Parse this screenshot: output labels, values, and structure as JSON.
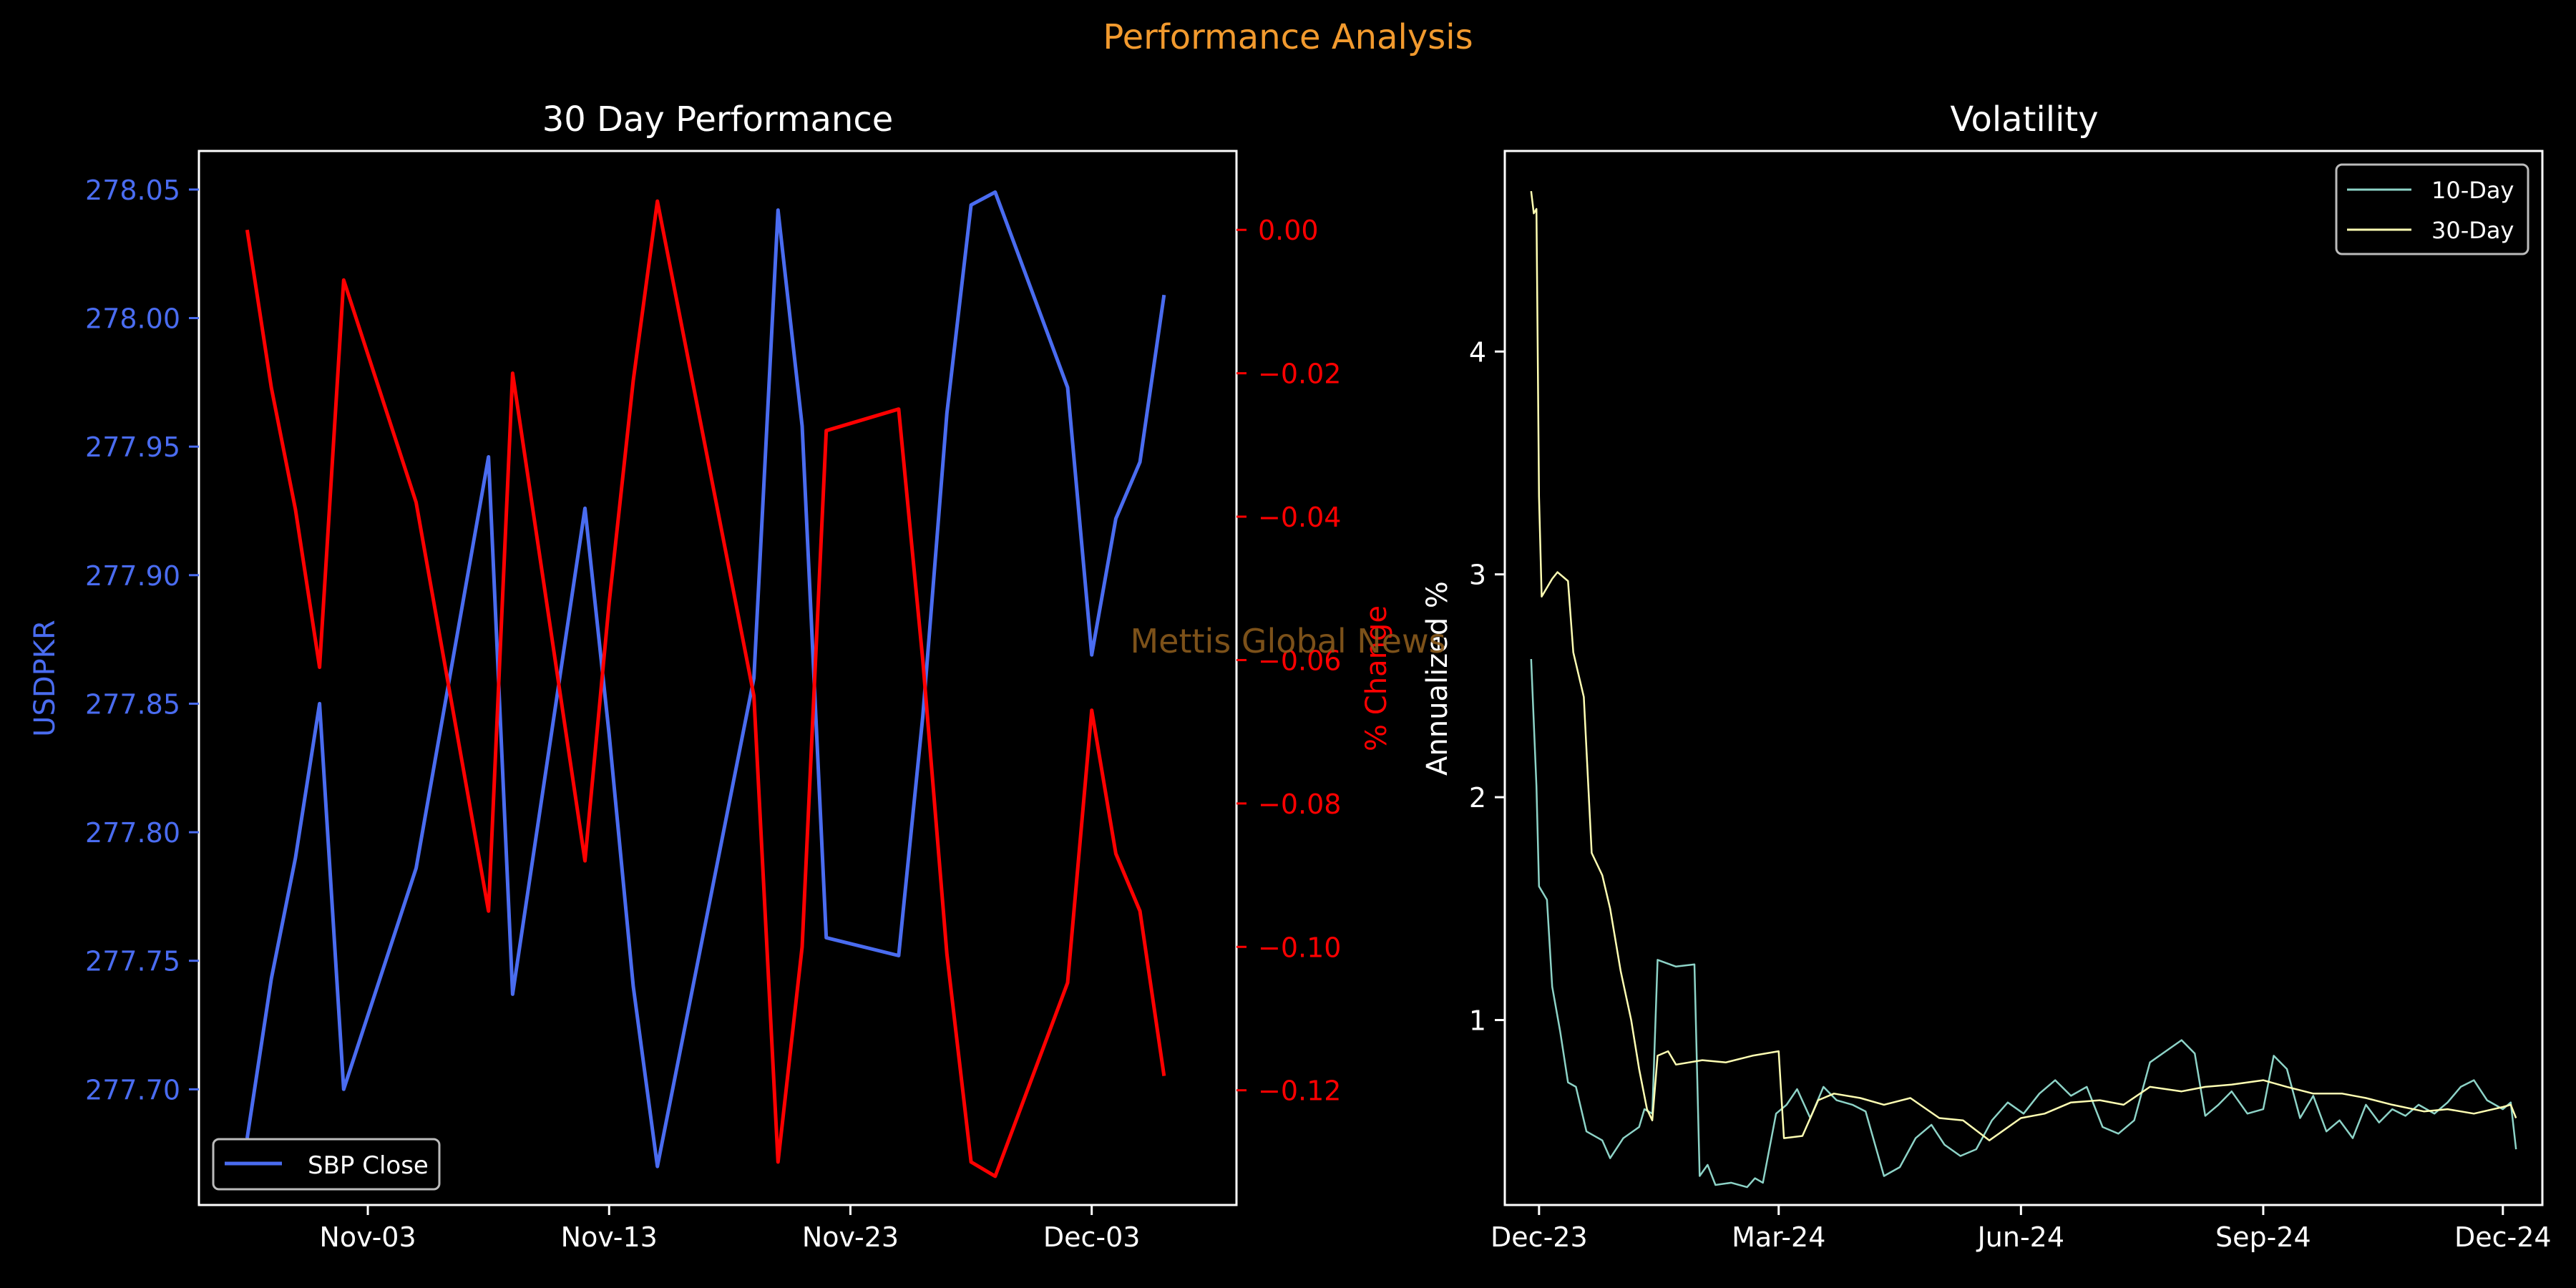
{
  "figure": {
    "suptitle": "Performance Analysis",
    "watermark": "Mettis Global News"
  },
  "colors": {
    "background": "#000000",
    "suptitle": "#f29a2e",
    "watermark": "#8a5a1c",
    "close": "#4a6cf0",
    "pct": "#ff0000",
    "vol10": "#8dd3c7",
    "vol30": "#ffffb3",
    "axis": "#ffffff"
  },
  "chart_data": [
    {
      "type": "line",
      "title": "30 Day Performance",
      "ylabel_left": "USDPKR",
      "ylabel_right": "% Change",
      "xlim": [
        "2023-10-27",
        "2023-12-09"
      ],
      "ylim_left": [
        277.655,
        278.065
      ],
      "ylim_right": [
        -0.136,
        0.011
      ],
      "x_tick_labels": [
        {
          "date": "2023-11-03",
          "label": "Nov-03"
        },
        {
          "date": "2023-11-13",
          "label": "Nov-13"
        },
        {
          "date": "2023-11-23",
          "label": "Nov-23"
        },
        {
          "date": "2023-12-03",
          "label": "Dec-03"
        }
      ],
      "y_ticks_left": [
        "277.70",
        "277.75",
        "277.80",
        "277.85",
        "277.90",
        "277.95",
        "278.00",
        "278.05"
      ],
      "y_ticks_right": [
        "0.00",
        "−0.02",
        "−0.04",
        "−0.06",
        "−0.08",
        "−0.10",
        "−0.12"
      ],
      "legend": {
        "position": "lower-left",
        "entries": [
          "SBP Close"
        ]
      },
      "series": [
        {
          "name": "SBP Close",
          "axis": "left",
          "points": [
            [
              "2023-10-29",
              277.681
            ],
            [
              "2023-10-30",
              277.743
            ],
            [
              "2023-10-31",
              277.79
            ],
            [
              "2023-11-01",
              277.85
            ],
            [
              "2023-11-02",
              277.7
            ],
            [
              "2023-11-05",
              277.786
            ],
            [
              "2023-11-08",
              277.946
            ],
            [
              "2023-11-09",
              277.737
            ],
            [
              "2023-11-12",
              277.926
            ],
            [
              "2023-11-13",
              277.838
            ],
            [
              "2023-11-14",
              277.74
            ],
            [
              "2023-11-15",
              277.67
            ],
            [
              "2023-11-19",
              277.86
            ],
            [
              "2023-11-20",
              278.042
            ],
            [
              "2023-11-21",
              277.958
            ],
            [
              "2023-11-22",
              277.759
            ],
            [
              "2023-11-25",
              277.752
            ],
            [
              "2023-11-26",
              277.845
            ],
            [
              "2023-11-27",
              277.963
            ],
            [
              "2023-11-28",
              278.044
            ],
            [
              "2023-11-29",
              278.049
            ],
            [
              "2023-12-02",
              277.973
            ],
            [
              "2023-12-03",
              277.869
            ],
            [
              "2023-12-04",
              277.922
            ],
            [
              "2023-12-05",
              277.944
            ],
            [
              "2023-12-06",
              278.009
            ]
          ]
        },
        {
          "name": "% Change",
          "axis": "right",
          "points": [
            [
              "2023-10-29",
              0.0
            ],
            [
              "2023-10-30",
              -0.022
            ],
            [
              "2023-10-31",
              -0.039
            ],
            [
              "2023-11-01",
              -0.061
            ],
            [
              "2023-11-02",
              -0.007
            ],
            [
              "2023-11-05",
              -0.038
            ],
            [
              "2023-11-08",
              -0.095
            ],
            [
              "2023-11-09",
              -0.02
            ],
            [
              "2023-11-12",
              -0.088
            ],
            [
              "2023-11-13",
              -0.052
            ],
            [
              "2023-11-14",
              -0.021
            ],
            [
              "2023-11-15",
              0.004
            ],
            [
              "2023-11-19",
              -0.065
            ],
            [
              "2023-11-20",
              -0.13
            ],
            [
              "2023-11-21",
              -0.1
            ],
            [
              "2023-11-22",
              -0.028
            ],
            [
              "2023-11-25",
              -0.025
            ],
            [
              "2023-11-26",
              -0.06
            ],
            [
              "2023-11-27",
              -0.101
            ],
            [
              "2023-11-28",
              -0.13
            ],
            [
              "2023-11-29",
              -0.132
            ],
            [
              "2023-12-02",
              -0.105
            ],
            [
              "2023-12-03",
              -0.067
            ],
            [
              "2023-12-04",
              -0.087
            ],
            [
              "2023-12-05",
              -0.095
            ],
            [
              "2023-12-06",
              -0.118
            ]
          ]
        }
      ]
    },
    {
      "type": "line",
      "title": "Volatility",
      "ylabel": "Annualized %",
      "xlim": [
        "2023-11-18",
        "2024-12-16"
      ],
      "ylim": [
        0.17,
        4.9
      ],
      "x_tick_labels": [
        {
          "date": "2023-12-01",
          "label": "Dec-23"
        },
        {
          "date": "2024-03-01",
          "label": "Mar-24"
        },
        {
          "date": "2024-06-01",
          "label": "Jun-24"
        },
        {
          "date": "2024-09-01",
          "label": "Sep-24"
        },
        {
          "date": "2024-12-01",
          "label": "Dec-24"
        }
      ],
      "y_ticks": [
        1,
        2,
        3,
        4
      ],
      "legend": {
        "position": "top-right",
        "entries": [
          "10-Day",
          "30-Day"
        ]
      },
      "series": [
        {
          "name": "10-Day",
          "points": [
            [
              "2023-11-28",
              2.62
            ],
            [
              "2023-11-30",
              2.05
            ],
            [
              "2023-12-01",
              1.6
            ],
            [
              "2023-12-04",
              1.54
            ],
            [
              "2023-12-06",
              1.15
            ],
            [
              "2023-12-09",
              0.95
            ],
            [
              "2023-12-12",
              0.72
            ],
            [
              "2023-12-15",
              0.7
            ],
            [
              "2023-12-19",
              0.5
            ],
            [
              "2023-12-25",
              0.46
            ],
            [
              "2023-12-28",
              0.38
            ],
            [
              "2024-01-02",
              0.47
            ],
            [
              "2024-01-08",
              0.52
            ],
            [
              "2024-01-10",
              0.6
            ],
            [
              "2024-01-13",
              0.58
            ],
            [
              "2024-01-15",
              1.27
            ],
            [
              "2024-01-22",
              1.24
            ],
            [
              "2024-01-29",
              1.25
            ],
            [
              "2024-01-31",
              0.3
            ],
            [
              "2024-02-03",
              0.35
            ],
            [
              "2024-02-06",
              0.26
            ],
            [
              "2024-02-12",
              0.27
            ],
            [
              "2024-02-18",
              0.25
            ],
            [
              "2024-02-21",
              0.29
            ],
            [
              "2024-02-24",
              0.27
            ],
            [
              "2024-02-29",
              0.58
            ],
            [
              "2024-03-04",
              0.62
            ],
            [
              "2024-03-08",
              0.69
            ],
            [
              "2024-03-13",
              0.56
            ],
            [
              "2024-03-18",
              0.7
            ],
            [
              "2024-03-23",
              0.64
            ],
            [
              "2024-03-29",
              0.62
            ],
            [
              "2024-04-03",
              0.59
            ],
            [
              "2024-04-10",
              0.3
            ],
            [
              "2024-04-16",
              0.34
            ],
            [
              "2024-04-22",
              0.47
            ],
            [
              "2024-04-28",
              0.53
            ],
            [
              "2024-05-03",
              0.44
            ],
            [
              "2024-05-09",
              0.39
            ],
            [
              "2024-05-15",
              0.42
            ],
            [
              "2024-05-21",
              0.55
            ],
            [
              "2024-05-27",
              0.63
            ],
            [
              "2024-06-02",
              0.58
            ],
            [
              "2024-06-08",
              0.67
            ],
            [
              "2024-06-14",
              0.73
            ],
            [
              "2024-06-20",
              0.66
            ],
            [
              "2024-06-26",
              0.7
            ],
            [
              "2024-07-02",
              0.52
            ],
            [
              "2024-07-08",
              0.49
            ],
            [
              "2024-07-14",
              0.55
            ],
            [
              "2024-07-20",
              0.81
            ],
            [
              "2024-07-26",
              0.86
            ],
            [
              "2024-08-01",
              0.91
            ],
            [
              "2024-08-06",
              0.85
            ],
            [
              "2024-08-10",
              0.57
            ],
            [
              "2024-08-15",
              0.62
            ],
            [
              "2024-08-20",
              0.68
            ],
            [
              "2024-08-26",
              0.58
            ],
            [
              "2024-09-01",
              0.6
            ],
            [
              "2024-09-05",
              0.84
            ],
            [
              "2024-09-10",
              0.78
            ],
            [
              "2024-09-15",
              0.56
            ],
            [
              "2024-09-20",
              0.66
            ],
            [
              "2024-09-25",
              0.5
            ],
            [
              "2024-09-30",
              0.55
            ],
            [
              "2024-10-05",
              0.47
            ],
            [
              "2024-10-10",
              0.62
            ],
            [
              "2024-10-15",
              0.54
            ],
            [
              "2024-10-20",
              0.6
            ],
            [
              "2024-10-25",
              0.57
            ],
            [
              "2024-10-30",
              0.62
            ],
            [
              "2024-11-05",
              0.58
            ],
            [
              "2024-11-10",
              0.63
            ],
            [
              "2024-11-15",
              0.7
            ],
            [
              "2024-11-20",
              0.73
            ],
            [
              "2024-11-25",
              0.64
            ],
            [
              "2024-12-01",
              0.6
            ],
            [
              "2024-12-04",
              0.63
            ],
            [
              "2024-12-06",
              0.42
            ]
          ]
        },
        {
          "name": "30-Day",
          "points": [
            [
              "2023-11-28",
              4.72
            ],
            [
              "2023-11-29",
              4.62
            ],
            [
              "2023-11-30",
              4.64
            ],
            [
              "2023-12-01",
              3.35
            ],
            [
              "2023-12-02",
              2.9
            ],
            [
              "2023-12-06",
              2.98
            ],
            [
              "2023-12-08",
              3.01
            ],
            [
              "2023-12-12",
              2.97
            ],
            [
              "2023-12-14",
              2.65
            ],
            [
              "2023-12-18",
              2.45
            ],
            [
              "2023-12-21",
              1.75
            ],
            [
              "2023-12-25",
              1.65
            ],
            [
              "2023-12-28",
              1.5
            ],
            [
              "2024-01-01",
              1.22
            ],
            [
              "2024-01-05",
              1.0
            ],
            [
              "2024-01-08",
              0.78
            ],
            [
              "2024-01-11",
              0.6
            ],
            [
              "2024-01-13",
              0.55
            ],
            [
              "2024-01-15",
              0.84
            ],
            [
              "2024-01-19",
              0.86
            ],
            [
              "2024-01-22",
              0.8
            ],
            [
              "2024-02-01",
              0.82
            ],
            [
              "2024-02-10",
              0.81
            ],
            [
              "2024-02-20",
              0.84
            ],
            [
              "2024-03-01",
              0.86
            ],
            [
              "2024-03-03",
              0.47
            ],
            [
              "2024-03-10",
              0.48
            ],
            [
              "2024-03-16",
              0.64
            ],
            [
              "2024-03-22",
              0.67
            ],
            [
              "2024-04-01",
              0.65
            ],
            [
              "2024-04-10",
              0.62
            ],
            [
              "2024-04-20",
              0.65
            ],
            [
              "2024-05-01",
              0.56
            ],
            [
              "2024-05-10",
              0.55
            ],
            [
              "2024-05-20",
              0.46
            ],
            [
              "2024-06-01",
              0.56
            ],
            [
              "2024-06-10",
              0.58
            ],
            [
              "2024-06-20",
              0.63
            ],
            [
              "2024-07-01",
              0.64
            ],
            [
              "2024-07-10",
              0.62
            ],
            [
              "2024-07-20",
              0.7
            ],
            [
              "2024-08-01",
              0.68
            ],
            [
              "2024-08-10",
              0.7
            ],
            [
              "2024-08-20",
              0.71
            ],
            [
              "2024-09-01",
              0.73
            ],
            [
              "2024-09-10",
              0.7
            ],
            [
              "2024-09-20",
              0.67
            ],
            [
              "2024-10-01",
              0.67
            ],
            [
              "2024-10-10",
              0.65
            ],
            [
              "2024-10-20",
              0.62
            ],
            [
              "2024-11-01",
              0.59
            ],
            [
              "2024-11-10",
              0.6
            ],
            [
              "2024-11-20",
              0.58
            ],
            [
              "2024-12-01",
              0.61
            ],
            [
              "2024-12-04",
              0.62
            ],
            [
              "2024-12-06",
              0.56
            ]
          ]
        }
      ]
    }
  ]
}
